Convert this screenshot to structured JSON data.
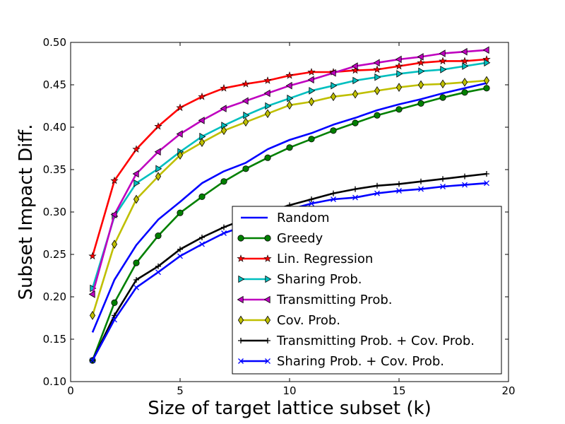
{
  "chart_data": {
    "type": "line",
    "title": "",
    "xlabel": "Size of target lattice subset (k)",
    "ylabel": "Subset Impact Diff.",
    "xlim": [
      0,
      20
    ],
    "ylim": [
      0.1,
      0.5
    ],
    "xticks": [
      "0",
      "5",
      "10",
      "15",
      "20"
    ],
    "yticks": [
      "0.10",
      "0.15",
      "0.20",
      "0.25",
      "0.30",
      "0.35",
      "0.40",
      "0.45",
      "0.50"
    ],
    "grid": false,
    "legend_position": "lower-right",
    "x": [
      1,
      2,
      3,
      4,
      5,
      6,
      7,
      8,
      9,
      10,
      11,
      12,
      13,
      14,
      15,
      16,
      17,
      18,
      19
    ],
    "series": [
      {
        "name": "Random",
        "color": "#0000ff",
        "marker": "none",
        "values": [
          0.158,
          0.22,
          0.261,
          0.291,
          0.312,
          0.334,
          0.348,
          0.358,
          0.374,
          0.385,
          0.393,
          0.403,
          0.411,
          0.42,
          0.427,
          0.433,
          0.44,
          0.446,
          0.452
        ]
      },
      {
        "name": "Greedy",
        "color": "#008000",
        "marker": "circle",
        "values": [
          0.125,
          0.193,
          0.24,
          0.272,
          0.299,
          0.318,
          0.336,
          0.351,
          0.364,
          0.376,
          0.386,
          0.396,
          0.405,
          0.414,
          0.421,
          0.428,
          0.435,
          0.441,
          0.446
        ]
      },
      {
        "name": "Lin. Regression",
        "color": "#ff0000",
        "marker": "star",
        "values": [
          0.248,
          0.337,
          0.374,
          0.401,
          0.423,
          0.436,
          0.446,
          0.451,
          0.455,
          0.461,
          0.465,
          0.465,
          0.467,
          0.468,
          0.472,
          0.476,
          0.478,
          0.478,
          0.48
        ]
      },
      {
        "name": "Sharing Prob.",
        "color": "#00bfbf",
        "marker": "triangle-right",
        "values": [
          0.21,
          0.295,
          0.334,
          0.351,
          0.371,
          0.389,
          0.402,
          0.414,
          0.425,
          0.434,
          0.443,
          0.449,
          0.455,
          0.459,
          0.463,
          0.466,
          0.468,
          0.472,
          0.476
        ]
      },
      {
        "name": "Transmitting Prob.",
        "color": "#bf00bf",
        "marker": "triangle-left",
        "values": [
          0.203,
          0.297,
          0.345,
          0.371,
          0.392,
          0.408,
          0.422,
          0.431,
          0.44,
          0.449,
          0.456,
          0.464,
          0.472,
          0.476,
          0.48,
          0.483,
          0.487,
          0.489,
          0.491
        ]
      },
      {
        "name": "Cov. Prob.",
        "color": "#bfbf00",
        "marker": "diamond",
        "values": [
          0.178,
          0.262,
          0.315,
          0.342,
          0.367,
          0.382,
          0.396,
          0.406,
          0.416,
          0.426,
          0.43,
          0.436,
          0.439,
          0.443,
          0.447,
          0.45,
          0.451,
          0.453,
          0.455
        ]
      },
      {
        "name": "Transmitting Prob. + Cov. Prob.",
        "color": "#000000",
        "marker": "plus",
        "values": [
          0.125,
          0.178,
          0.22,
          0.236,
          0.256,
          0.27,
          0.282,
          0.292,
          0.3,
          0.308,
          0.315,
          0.322,
          0.327,
          0.331,
          0.333,
          0.336,
          0.339,
          0.342,
          0.345
        ]
      },
      {
        "name": "Sharing Prob. + Cov. Prob.",
        "color": "#0000ff",
        "marker": "x",
        "values": [
          0.125,
          0.173,
          0.211,
          0.229,
          0.248,
          0.262,
          0.275,
          0.284,
          0.293,
          0.303,
          0.31,
          0.315,
          0.317,
          0.322,
          0.325,
          0.327,
          0.33,
          0.332,
          0.334
        ]
      }
    ]
  }
}
